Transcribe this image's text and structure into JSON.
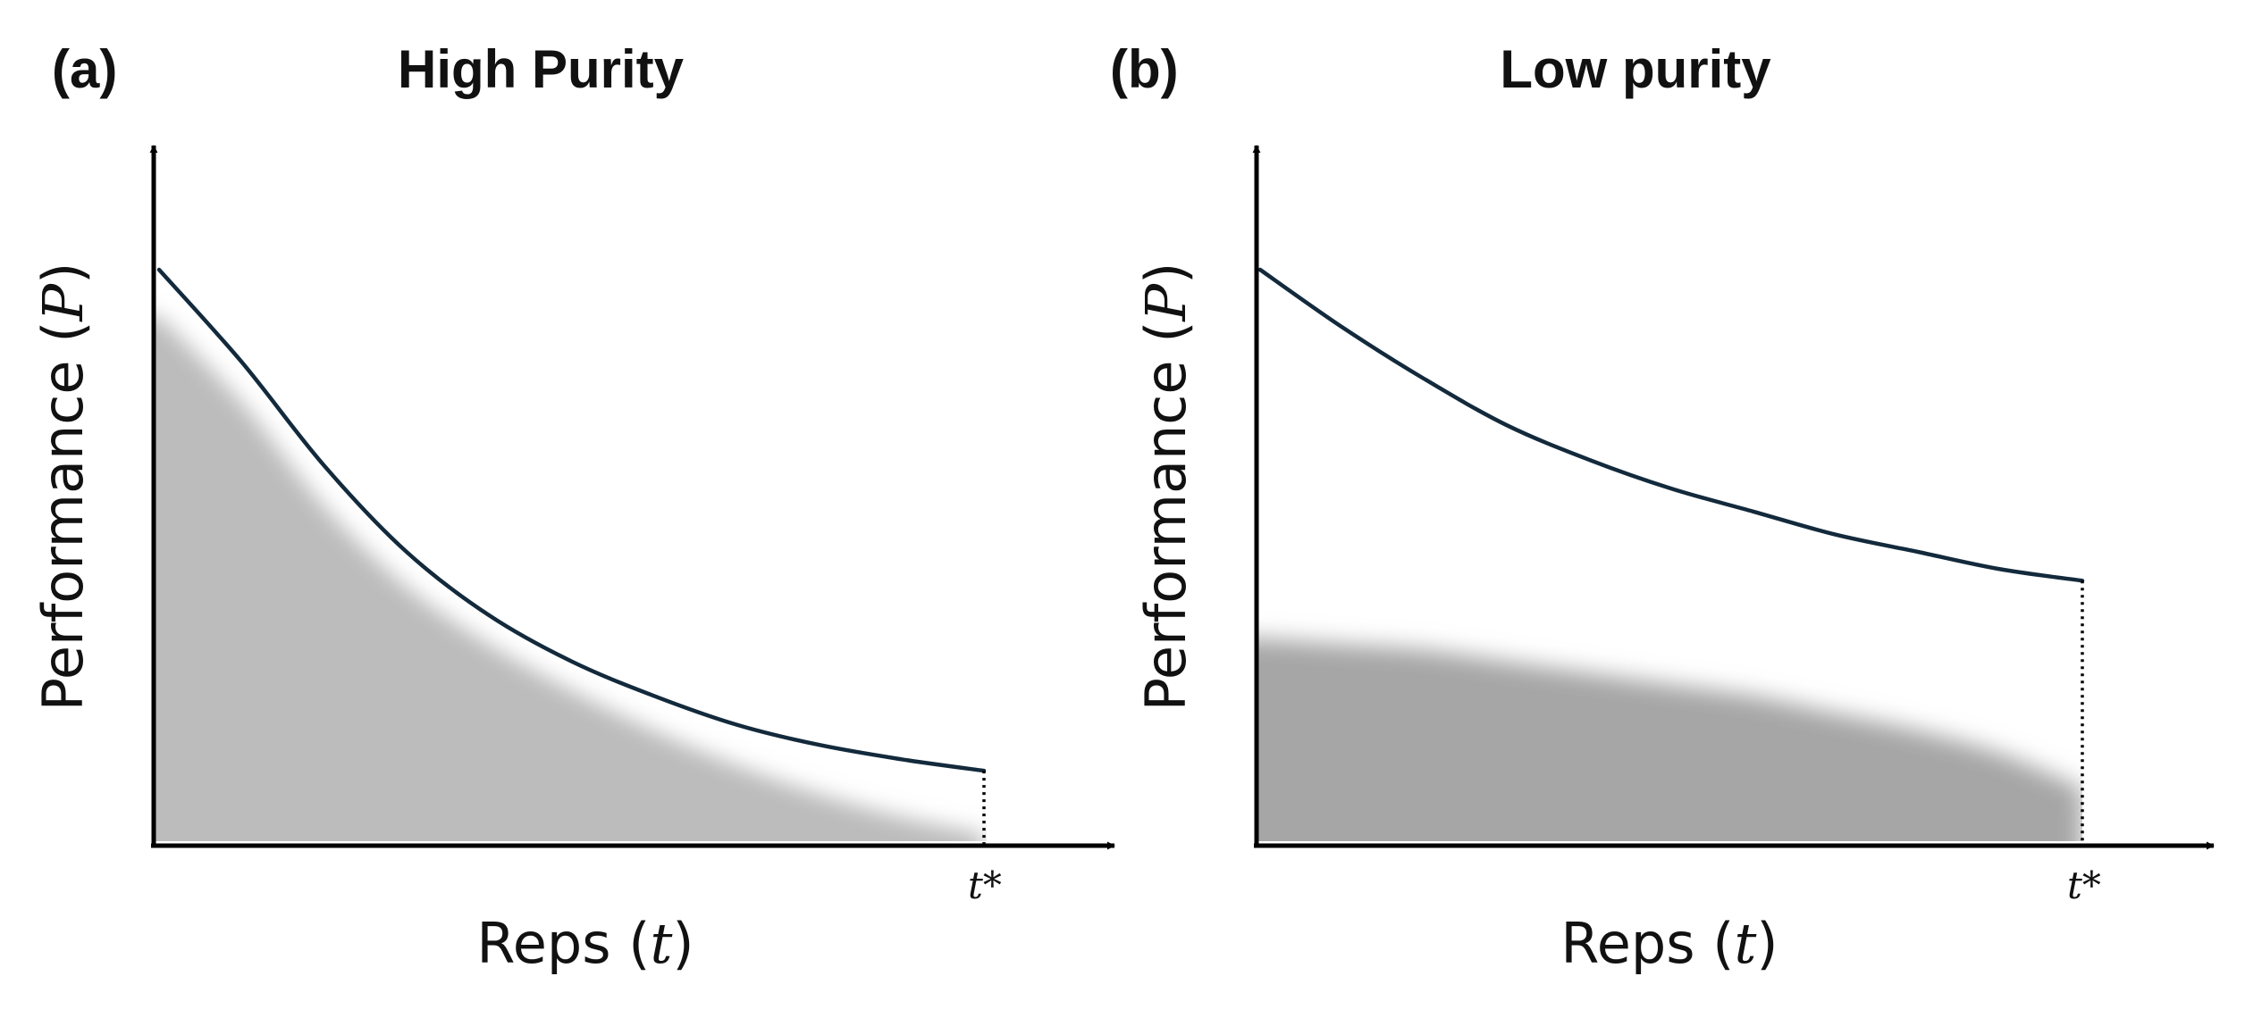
{
  "chart_data": [
    {
      "panel": "(a)",
      "title": "High Purity",
      "type": "line",
      "xlabel": "Reps",
      "xlabel_var": "t",
      "ylabel": "Performance",
      "ylabel_var": "P",
      "x_tick_label": "t*",
      "x": [
        0,
        0.1,
        0.2,
        0.3,
        0.4,
        0.5,
        0.6,
        0.7,
        0.8,
        0.9,
        1.0
      ],
      "values": [
        1.0,
        0.84,
        0.66,
        0.51,
        0.4,
        0.32,
        0.26,
        0.21,
        0.175,
        0.15,
        0.13
      ],
      "shade_values": [
        0.92,
        0.77,
        0.59,
        0.45,
        0.35,
        0.27,
        0.2,
        0.14,
        0.09,
        0.05,
        0.02
      ],
      "xlim": [
        0,
        1.15
      ],
      "ylim": [
        0,
        1.18
      ],
      "shade_color": "#bcbcbc",
      "line_color": "#132a3c"
    },
    {
      "panel": "(b)",
      "title": "Low purity",
      "type": "line",
      "xlabel": "Reps",
      "xlabel_var": "t",
      "ylabel": "Performance",
      "ylabel_var": "P",
      "x_tick_label": "t*",
      "x": [
        0,
        0.1,
        0.2,
        0.3,
        0.4,
        0.5,
        0.6,
        0.7,
        0.8,
        0.9,
        1.0
      ],
      "values": [
        1.0,
        0.9,
        0.81,
        0.73,
        0.67,
        0.62,
        0.58,
        0.54,
        0.51,
        0.48,
        0.46
      ],
      "shade_values": [
        0.36,
        0.35,
        0.34,
        0.32,
        0.3,
        0.28,
        0.26,
        0.23,
        0.2,
        0.16,
        0.1
      ],
      "xlim": [
        0,
        1.15
      ],
      "ylim": [
        0,
        1.18
      ],
      "shade_color": "#a6a6a6",
      "line_color": "#132a3c"
    }
  ]
}
